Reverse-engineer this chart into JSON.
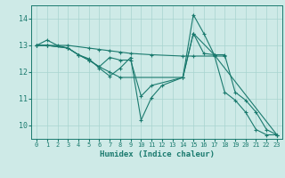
{
  "background_color": "#ceeae7",
  "grid_color": "#a8d4d0",
  "line_color": "#1a7a6e",
  "xlabel": "Humidex (Indice chaleur)",
  "xlim": [
    -0.5,
    23.5
  ],
  "ylim": [
    9.5,
    14.5
  ],
  "yticks": [
    10,
    11,
    12,
    13,
    14
  ],
  "xticks": [
    0,
    1,
    2,
    3,
    4,
    5,
    6,
    7,
    8,
    9,
    10,
    11,
    12,
    13,
    14,
    15,
    16,
    17,
    18,
    19,
    20,
    21,
    22,
    23
  ],
  "series": [
    {
      "x": [
        0,
        1,
        2,
        3,
        4,
        5,
        6,
        7,
        8,
        9,
        10,
        11,
        12,
        14,
        15,
        16,
        17,
        18,
        19,
        20,
        21,
        22,
        23
      ],
      "y": [
        13.0,
        13.2,
        13.0,
        12.9,
        12.65,
        12.5,
        12.15,
        11.85,
        12.15,
        12.55,
        10.2,
        11.05,
        11.5,
        11.8,
        14.15,
        13.45,
        12.65,
        12.65,
        11.25,
        10.95,
        10.5,
        9.85,
        9.65
      ]
    },
    {
      "x": [
        0,
        1,
        3,
        5,
        6,
        7,
        8,
        9,
        11,
        14,
        15,
        17,
        18
      ],
      "y": [
        13.0,
        13.0,
        13.0,
        12.9,
        12.85,
        12.8,
        12.75,
        12.7,
        12.65,
        12.6,
        12.6,
        12.6,
        12.6
      ]
    },
    {
      "x": [
        0,
        1,
        3,
        4,
        5,
        6,
        7,
        8,
        9,
        10,
        11,
        14,
        15,
        17,
        23
      ],
      "y": [
        13.0,
        13.0,
        12.9,
        12.65,
        12.45,
        12.2,
        12.55,
        12.45,
        12.45,
        11.1,
        11.5,
        11.8,
        13.45,
        12.65,
        9.65
      ]
    },
    {
      "x": [
        0,
        1,
        3,
        4,
        5,
        6,
        7,
        8,
        14,
        15,
        16,
        17,
        18,
        19,
        20,
        21,
        22,
        23
      ],
      "y": [
        13.0,
        13.0,
        12.9,
        12.65,
        12.45,
        12.2,
        12.0,
        11.8,
        11.8,
        13.45,
        12.7,
        12.65,
        11.25,
        10.95,
        10.5,
        9.85,
        9.65,
        9.65
      ]
    }
  ]
}
